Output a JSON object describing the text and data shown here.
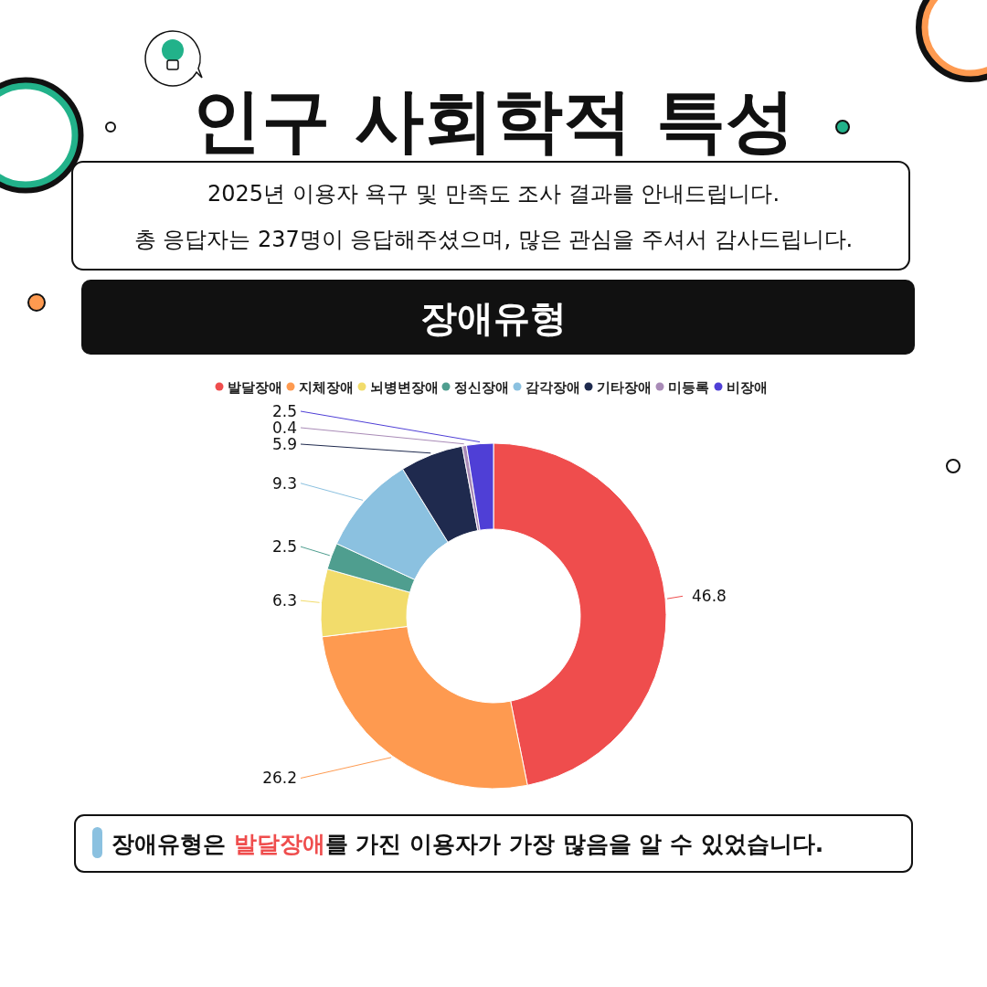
{
  "chart_data": {
    "type": "donut",
    "title": "인구 사회학적 특성",
    "subtitle": "장애유형",
    "annotations": [
      "2025년 이용자 욕구 및 만족도 조사 결과를 안내드립니다.",
      "총 응답자는 237명이 응답해주셨으며, 많은 관심을 주셔서 감사드립니다.",
      "장애유형은 발달장애를 가진 이용자가 가장 많음을 알 수 있었습니다."
    ],
    "categories": [
      "발달장애",
      "지체장애",
      "뇌병변장애",
      "정신장애",
      "감각장애",
      "기타장애",
      "미등록",
      "비장애"
    ],
    "values": [
      46.8,
      26.2,
      6.3,
      2.5,
      9.3,
      5.9,
      0.4,
      2.5
    ],
    "colors": [
      "#ef4d4d",
      "#fe9a50",
      "#f2dc6b",
      "#4f9e8f",
      "#8bc1e0",
      "#1f2a4e",
      "#a98bb7",
      "#4f3fd6"
    ],
    "data_labels": true,
    "legend": "top"
  }
}
